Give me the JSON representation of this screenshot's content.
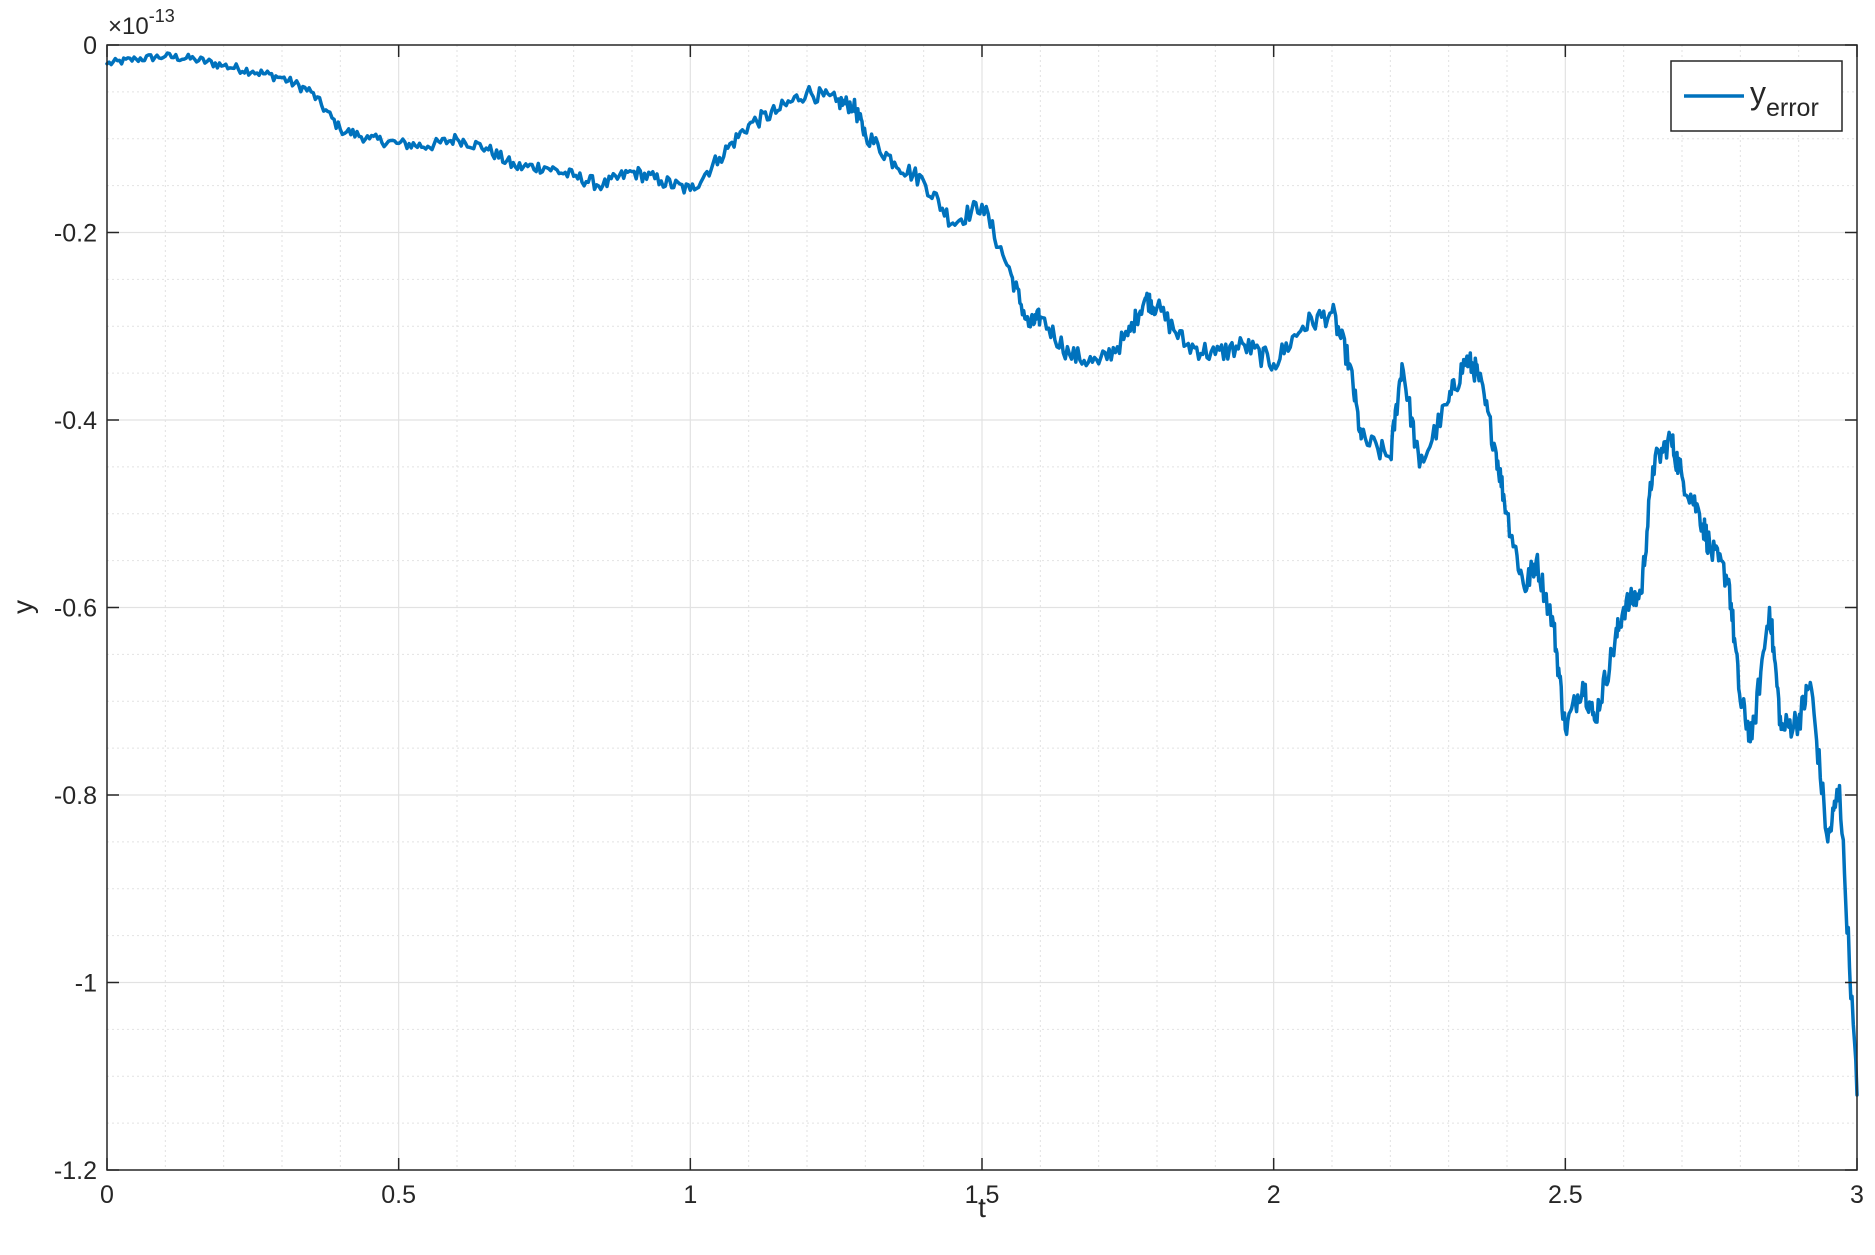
{
  "chart_data": {
    "type": "line",
    "title": "",
    "xlabel": "t",
    "ylabel": "y",
    "xlim": [
      0,
      3
    ],
    "ylim": [
      -1.2,
      0
    ],
    "y_exponent": {
      "base": "10",
      "power": "-13",
      "prefix": "×"
    },
    "xticks": [
      0,
      0.5,
      1,
      1.5,
      2,
      2.5,
      3
    ],
    "xtick_labels": [
      "0",
      "0.5",
      "1",
      "1.5",
      "2",
      "2.5",
      "3"
    ],
    "yticks": [
      -1.2,
      -1,
      -0.8,
      -0.6,
      -0.4,
      -0.2,
      0
    ],
    "ytick_labels": [
      "-1.2",
      "-1",
      "-0.8",
      "-0.6",
      "-0.4",
      "-0.2",
      "0"
    ],
    "x_minor_step": 0.1,
    "y_minor_step": 0.05,
    "grid": {
      "major": true,
      "minor": true
    },
    "legend": {
      "position": "top-right",
      "label_main": "y",
      "label_sub": "error"
    },
    "colors": {
      "line": "#0072BD",
      "grid": "#e2e2e2",
      "axis": "#262626",
      "background": "#ffffff"
    },
    "series": [
      {
        "name": "y_error",
        "x": [
          0,
          0.05,
          0.1,
          0.15,
          0.2,
          0.25,
          0.3,
          0.35,
          0.4,
          0.45,
          0.5,
          0.55,
          0.6,
          0.65,
          0.7,
          0.75,
          0.8,
          0.85,
          0.9,
          0.95,
          1.0,
          1.05,
          1.1,
          1.15,
          1.2,
          1.25,
          1.28,
          1.3,
          1.35,
          1.4,
          1.45,
          1.5,
          1.55,
          1.58,
          1.6,
          1.65,
          1.7,
          1.75,
          1.78,
          1.8,
          1.85,
          1.9,
          1.95,
          2.0,
          2.05,
          2.1,
          2.13,
          2.15,
          2.2,
          2.22,
          2.25,
          2.3,
          2.33,
          2.35,
          2.38,
          2.4,
          2.43,
          2.45,
          2.48,
          2.5,
          2.53,
          2.55,
          2.58,
          2.6,
          2.63,
          2.65,
          2.68,
          2.7,
          2.73,
          2.75,
          2.78,
          2.8,
          2.82,
          2.85,
          2.87,
          2.9,
          2.92,
          2.95,
          2.97,
          3.0
        ],
        "y": [
          -0.02,
          -0.015,
          -0.012,
          -0.015,
          -0.022,
          -0.028,
          -0.035,
          -0.05,
          -0.09,
          -0.1,
          -0.105,
          -0.108,
          -0.1,
          -0.11,
          -0.13,
          -0.13,
          -0.14,
          -0.15,
          -0.135,
          -0.145,
          -0.155,
          -0.12,
          -0.085,
          -0.07,
          -0.05,
          -0.06,
          -0.065,
          -0.095,
          -0.125,
          -0.145,
          -0.19,
          -0.17,
          -0.245,
          -0.3,
          -0.29,
          -0.33,
          -0.34,
          -0.31,
          -0.27,
          -0.28,
          -0.32,
          -0.33,
          -0.32,
          -0.34,
          -0.3,
          -0.285,
          -0.34,
          -0.42,
          -0.44,
          -0.34,
          -0.45,
          -0.38,
          -0.335,
          -0.35,
          -0.43,
          -0.5,
          -0.58,
          -0.55,
          -0.62,
          -0.73,
          -0.68,
          -0.72,
          -0.65,
          -0.6,
          -0.585,
          -0.45,
          -0.42,
          -0.46,
          -0.5,
          -0.54,
          -0.57,
          -0.7,
          -0.74,
          -0.6,
          -0.73,
          -0.72,
          -0.68,
          -0.85,
          -0.79,
          -1.12
        ],
        "note": ""
      }
    ]
  }
}
